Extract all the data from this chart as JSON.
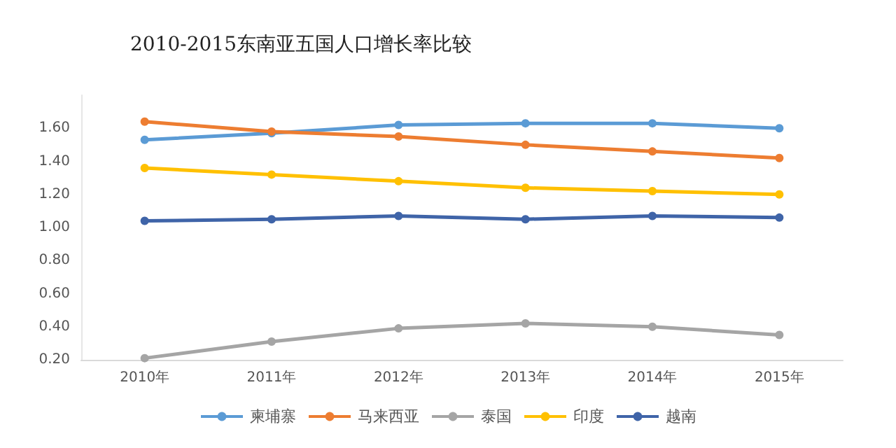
{
  "chart_data": {
    "type": "line",
    "title": "2010-2015东南亚五国人口增长率比较",
    "categories": [
      "2010年",
      "2011年",
      "2012年",
      "2013年",
      "2014年",
      "2015年"
    ],
    "series": [
      {
        "name": "柬埔寨",
        "color": "#5b9bd5",
        "values": [
          1.53,
          1.57,
          1.62,
          1.63,
          1.63,
          1.6
        ]
      },
      {
        "name": "马来西亚",
        "color": "#ed7d31",
        "values": [
          1.64,
          1.58,
          1.55,
          1.5,
          1.46,
          1.42
        ]
      },
      {
        "name": "泰国",
        "color": "#a5a5a5",
        "values": [
          0.21,
          0.31,
          0.39,
          0.42,
          0.4,
          0.35
        ]
      },
      {
        "name": "印度",
        "color": "#ffc000",
        "values": [
          1.36,
          1.32,
          1.28,
          1.24,
          1.22,
          1.2
        ]
      },
      {
        "name": "越南",
        "color": "#3f64a8",
        "values": [
          1.04,
          1.05,
          1.07,
          1.05,
          1.07,
          1.06
        ]
      }
    ],
    "ylim": [
      0.2,
      1.8
    ],
    "yticks": [
      {
        "value": 0.2,
        "label": "0.20"
      },
      {
        "value": 0.4,
        "label": "0.40"
      },
      {
        "value": 0.6,
        "label": "0.60"
      },
      {
        "value": 0.8,
        "label": "0.80"
      },
      {
        "value": 1.0,
        "label": "1.00"
      },
      {
        "value": 1.2,
        "label": "1.20"
      },
      {
        "value": 1.4,
        "label": "1.40"
      },
      {
        "value": 1.6,
        "label": "1.60"
      }
    ],
    "grid": false,
    "legend": "bottom",
    "marker": "circle",
    "line_style": "solid"
  }
}
